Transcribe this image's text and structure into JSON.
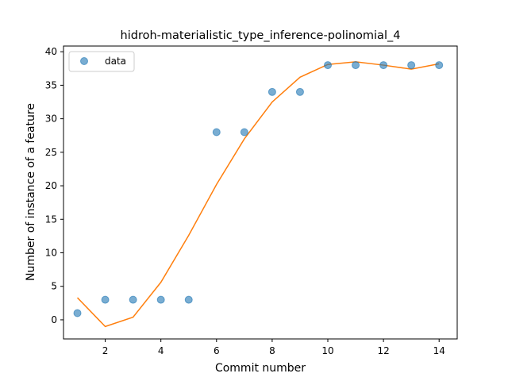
{
  "chart_data": {
    "type": "scatter",
    "title": "hidroh-materialistic_type_inference-polinomial_4",
    "xlabel": "Commit number",
    "ylabel": "Number of instance of a feature",
    "xlim": [
      0.5,
      14.65
    ],
    "ylim": [
      -2.85,
      40.85
    ],
    "xticks": [
      2,
      4,
      6,
      8,
      10,
      12,
      14
    ],
    "yticks": [
      0,
      5,
      10,
      15,
      20,
      25,
      30,
      35,
      40
    ],
    "grid": false,
    "legend": {
      "position": "top-left",
      "entries": [
        "data"
      ]
    },
    "series": [
      {
        "name": "data",
        "kind": "scatter",
        "color": "#1f77b4",
        "x": [
          1,
          2,
          3,
          4,
          5,
          6,
          7,
          8,
          9,
          10,
          11,
          12,
          13,
          14
        ],
        "y": [
          1,
          3,
          3,
          3,
          3,
          28,
          28,
          34,
          34,
          38,
          38,
          38,
          38,
          38
        ]
      },
      {
        "kind": "line",
        "color": "#ff7f0e",
        "x": [
          1,
          2,
          3,
          4,
          5,
          6,
          7,
          8,
          9,
          10,
          11,
          12,
          13,
          14
        ],
        "y": [
          3.3,
          -1.0,
          0.4,
          5.6,
          12.6,
          20.2,
          27.0,
          32.5,
          36.2,
          38.1,
          38.5,
          38.0,
          37.4,
          38.2
        ]
      }
    ]
  }
}
